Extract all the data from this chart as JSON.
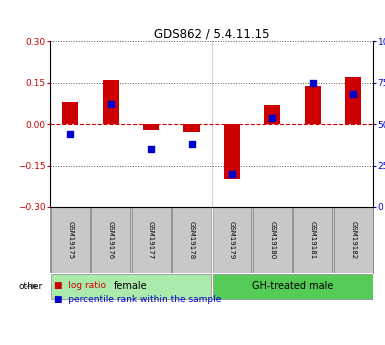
{
  "title": "GDS862 / 5.4.11.15",
  "samples": [
    "GSM19175",
    "GSM19176",
    "GSM19177",
    "GSM19178",
    "GSM19179",
    "GSM19180",
    "GSM19181",
    "GSM19182"
  ],
  "log_ratio": [
    0.08,
    0.16,
    -0.02,
    -0.03,
    -0.2,
    0.07,
    0.14,
    0.17
  ],
  "percentile_rank": [
    44,
    62,
    35,
    38,
    20,
    54,
    75,
    68
  ],
  "groups": [
    {
      "label": "female",
      "indices": [
        0,
        1,
        2,
        3
      ],
      "color": "#AAEAAA"
    },
    {
      "label": "GH-treated male",
      "indices": [
        4,
        5,
        6,
        7
      ],
      "color": "#55CC55"
    }
  ],
  "ylim_left": [
    -0.3,
    0.3
  ],
  "ylim_right": [
    0,
    100
  ],
  "yticks_left": [
    -0.3,
    -0.15,
    0.0,
    0.15,
    0.3
  ],
  "yticks_right": [
    0,
    25,
    50,
    75,
    100
  ],
  "bar_color_red": "#CC0000",
  "bar_color_blue": "#0000CC",
  "bar_width": 0.4,
  "background_color": "#ffffff",
  "plot_bg_color": "#ffffff",
  "hline_color": "#CC0000",
  "dotted_color": "#555555",
  "legend_red_label": "log ratio",
  "legend_blue_label": "percentile rank within the sample",
  "other_label": "other",
  "sep_index": 3.5,
  "female_color": "#AAEAAA",
  "gh_color": "#55CC55"
}
